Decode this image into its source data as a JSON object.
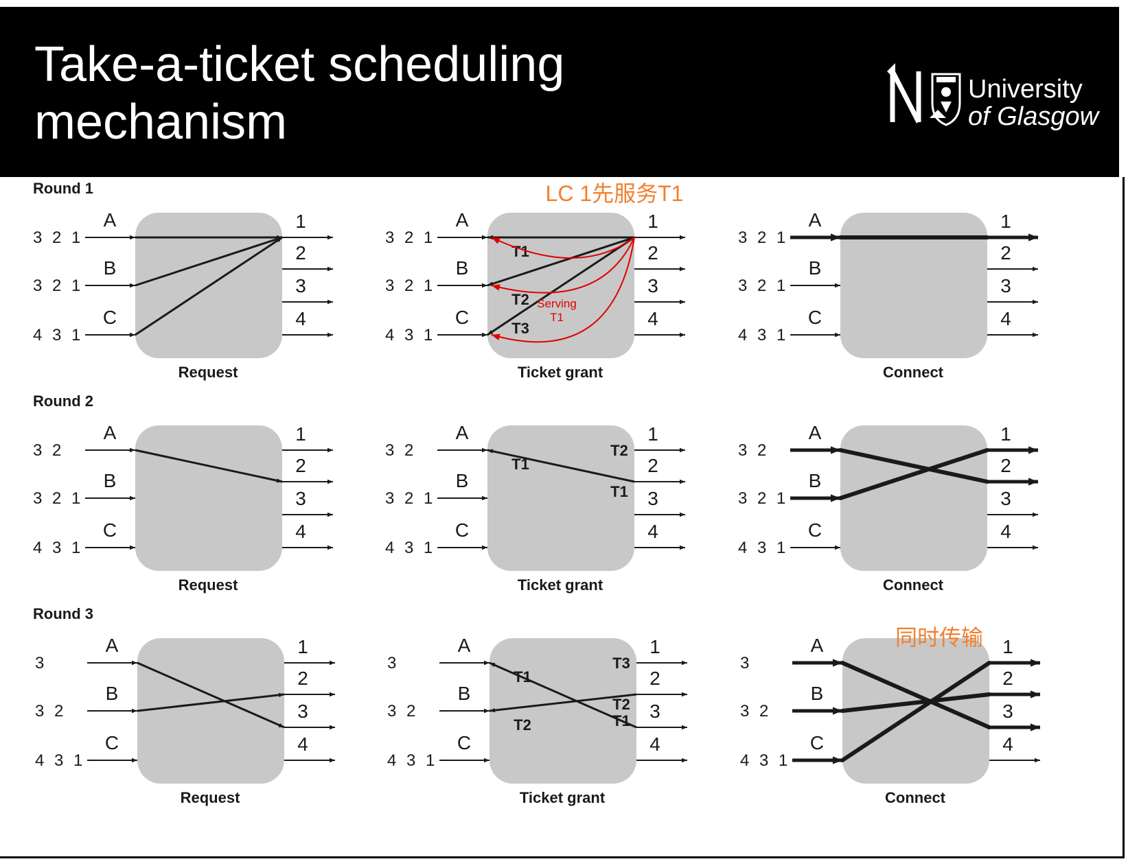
{
  "slide": {
    "title_line1": "Take-a-ticket scheduling",
    "title_line2": "mechanism"
  },
  "logo": {
    "line1": "University",
    "line2": "of Glasgow",
    "crest_icon": "university-crest-icon"
  },
  "diagram": {
    "input_labels": [
      "A",
      "B",
      "C"
    ],
    "output_labels": [
      "1",
      "2",
      "3",
      "4"
    ],
    "stage_labels": [
      "Request",
      "Ticket grant",
      "Connect"
    ],
    "rounds": [
      {
        "label": "Round 1",
        "queues": [
          "3 2 1",
          "3 2 1",
          "4 3 1"
        ],
        "request": [
          [
            "A",
            "1"
          ],
          [
            "B",
            "1"
          ],
          [
            "C",
            "1"
          ]
        ],
        "grant": {
          "links": [
            [
              "A",
              "1"
            ],
            [
              "B",
              "1"
            ],
            [
              "C",
              "1"
            ]
          ],
          "input_tickets": [
            [
              "A",
              "T1"
            ],
            [
              "B",
              "T2"
            ],
            [
              "C",
              "T3"
            ]
          ],
          "output_tickets": []
        },
        "connect": [
          [
            "A",
            "1"
          ]
        ]
      },
      {
        "label": "Round 2",
        "queues": [
          "3 2",
          "3 2 1",
          "4 3 1"
        ],
        "request": [
          [
            "A",
            "2"
          ]
        ],
        "grant": {
          "links": [
            [
              "A",
              "2"
            ]
          ],
          "input_tickets": [
            [
              "A",
              "T1"
            ]
          ],
          "output_tickets": [
            [
              "1",
              "T2"
            ],
            [
              "2",
              "T1"
            ]
          ]
        },
        "connect": [
          [
            "A",
            "2"
          ],
          [
            "B",
            "1"
          ]
        ]
      },
      {
        "label": "Round 3",
        "queues": [
          "3",
          "3 2",
          "4 3 1"
        ],
        "request": [
          [
            "A",
            "3"
          ],
          [
            "B",
            "2"
          ]
        ],
        "grant": {
          "links": [
            [
              "A",
              "3"
            ],
            [
              "B",
              "2"
            ]
          ],
          "input_tickets": [
            [
              "A",
              "T1"
            ],
            [
              "B",
              "T2"
            ]
          ],
          "output_tickets": [
            [
              "1",
              "T3"
            ],
            [
              "2",
              "T2"
            ],
            [
              "3",
              "T1"
            ]
          ]
        },
        "connect": [
          [
            "A",
            "3"
          ],
          [
            "B",
            "2"
          ],
          [
            "C",
            "1"
          ]
        ]
      }
    ],
    "annotations": {
      "round1_note": "LC 1先服务T1",
      "serving_note": "Serving\nT1",
      "round3_note": "同时传输"
    },
    "colors": {
      "box": "#c8c8c8",
      "line": "#1a1a1a",
      "highlight": "#e00000",
      "note": "#f08030"
    }
  }
}
